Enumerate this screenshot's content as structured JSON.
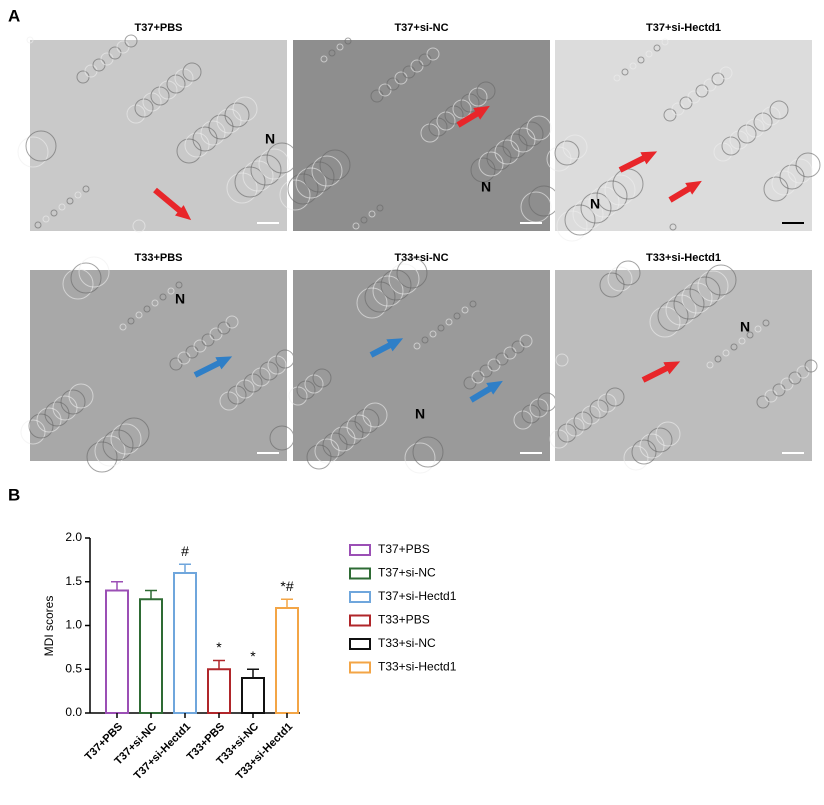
{
  "panel_a": {
    "label": "A",
    "images": [
      {
        "title": "T37+PBS",
        "nucleus": "N"
      },
      {
        "title": "T37+si-NC",
        "nucleus": "N"
      },
      {
        "title": "T37+si-Hectd1",
        "nucleus": "N"
      },
      {
        "title": "T33+PBS",
        "nucleus": "N"
      },
      {
        "title": "T33+si-NC",
        "nucleus": "N"
      },
      {
        "title": "T33+si-Hectd1",
        "nucleus": "N"
      }
    ]
  },
  "panel_b": {
    "label": "B"
  },
  "chart_data": {
    "type": "bar",
    "y_label": "MDI scores",
    "categories": [
      "T37+PBS",
      "T37+si-NC",
      "T37+si-Hectd1",
      "T33+PBS",
      "T33+si-NC",
      "T33+si-Hectd1"
    ],
    "values": [
      1.4,
      1.3,
      1.6,
      0.5,
      0.4,
      1.2
    ],
    "errors": [
      0.1,
      0.1,
      0.1,
      0.1,
      0.1,
      0.1
    ],
    "value_annotations": [
      null,
      null,
      "#",
      "*",
      "*",
      "*#"
    ],
    "colors": [
      "#9b4fb5",
      "#2e6b34",
      "#6fa6dc",
      "#b0262a",
      "#111111",
      "#f3a546"
    ],
    "ylim": [
      0,
      2
    ],
    "yticks": [
      {
        "value": 0,
        "label": "0.0"
      },
      0.5,
      {
        "value": 1,
        "label": "1.0"
      },
      1.5,
      {
        "value": 2,
        "label": "2.0"
      }
    ]
  }
}
